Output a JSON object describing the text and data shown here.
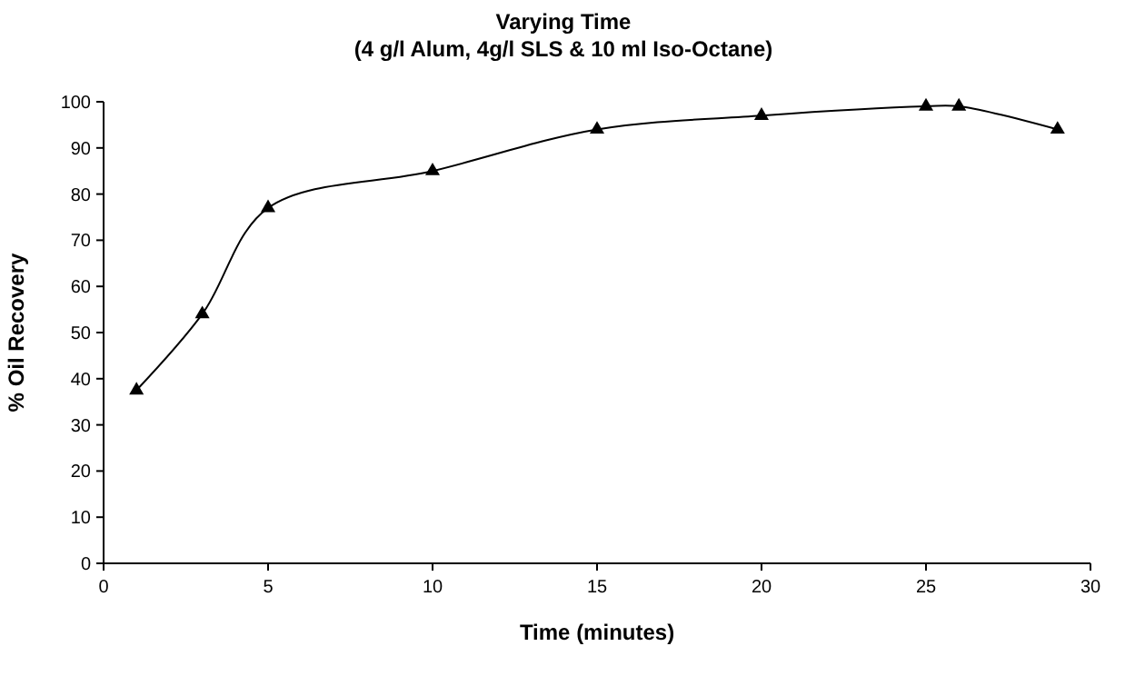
{
  "chart_data": {
    "type": "line",
    "title": "Varying Time",
    "subtitle": "(4 g/l Alum, 4g/l SLS & 10 ml Iso-Octane)",
    "xlabel": "Time (minutes)",
    "ylabel": "% Oil Recovery",
    "x": [
      1,
      3,
      5,
      10,
      15,
      20,
      25,
      26,
      29
    ],
    "series": [
      {
        "color": "#000000",
        "values": [
          37.5,
          54,
          77,
          85,
          94,
          97,
          99,
          99,
          94
        ]
      }
    ],
    "xlim": [
      0,
      30
    ],
    "xticks": [
      0,
      5,
      10,
      15,
      20,
      25,
      30
    ],
    "ylim": [
      0,
      100
    ],
    "yticks": [
      0,
      10,
      20,
      30,
      40,
      50,
      60,
      70,
      80,
      90,
      100
    ],
    "marker": "triangle",
    "line_style": "solid",
    "grid": false,
    "legend": false
  }
}
